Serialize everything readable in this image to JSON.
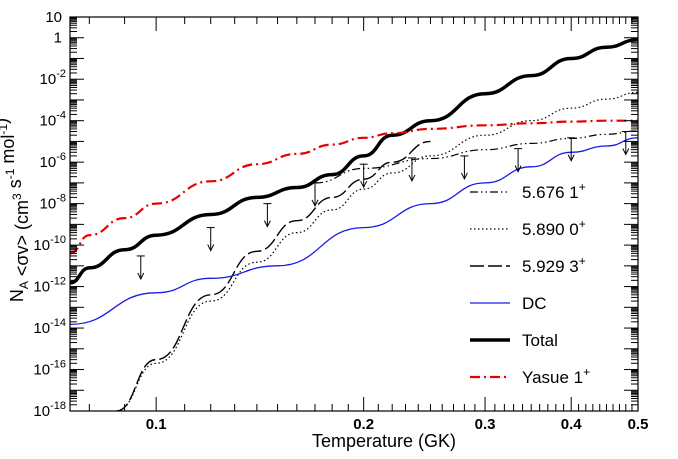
{
  "chart_data": {
    "type": "line",
    "xlabel": "Temperature (GK)",
    "ylabel": "N_A <σv> (cm^3 s^-1 mol^-1)",
    "xlim": [
      0.075,
      0.5
    ],
    "ylim": [
      1e-18,
      10
    ],
    "xscale": "log",
    "yscale": "log",
    "grid": false,
    "legend_position": "bottom-right",
    "x_ticks": [
      "0.1",
      "0.2",
      "0.3",
      "0.4",
      "0.5"
    ],
    "y_ticks": [
      {
        "base": "10",
        "exp": "-18"
      },
      {
        "base": "10",
        "exp": "-16"
      },
      {
        "base": "10",
        "exp": "-14"
      },
      {
        "base": "10",
        "exp": "-12"
      },
      {
        "base": "10",
        "exp": "-10"
      },
      {
        "base": "10",
        "exp": "-8"
      },
      {
        "base": "10",
        "exp": "-6"
      },
      {
        "base": "10",
        "exp": "-4"
      },
      {
        "base": "10",
        "exp": "-2"
      },
      {
        "base": "1",
        "exp": ""
      },
      {
        "base": "10",
        "exp": ""
      }
    ],
    "series": [
      {
        "name": "5.676 1+",
        "label_main": "5.676 1",
        "label_sup": "+",
        "style": "dashdotdot",
        "color": "#000000",
        "width": 1.2,
        "x": [
          0.085,
          0.095,
          0.11,
          0.13,
          0.15,
          0.17,
          0.2,
          0.25,
          0.3,
          0.35,
          0.4,
          0.45,
          0.5
        ],
        "y": [
          0.0,
          0.0,
          0.0,
          0.0,
          0.0,
          1e-07,
          5e-07,
          1.5e-06,
          4e-06,
          8e-06,
          1.4e-05,
          2.2e-05,
          3.2e-05
        ],
        "upper_limits": true
      },
      {
        "name": "5.890 0+",
        "label_main": "5.890 0",
        "label_sup": "+",
        "style": "dotted",
        "color": "#000000",
        "width": 1.2,
        "x": [
          0.0875,
          0.1,
          0.12,
          0.14,
          0.16,
          0.18,
          0.2,
          0.22,
          0.25,
          0.3,
          0.35,
          0.4,
          0.45,
          0.5
        ],
        "y": [
          1e-18,
          2e-16,
          2e-13,
          1.5e-11,
          4e-10,
          5e-09,
          5e-08,
          3e-07,
          2e-06,
          2e-05,
          0.0001,
          0.0004,
          0.0011,
          0.0023
        ]
      },
      {
        "name": "5.929 3+",
        "label_main": "5.929 3",
        "label_sup": "+",
        "style": "longdash",
        "color": "#000000",
        "width": 1.4,
        "x": [
          0.0875,
          0.1,
          0.12,
          0.14,
          0.16,
          0.18,
          0.2,
          0.22,
          0.25
        ],
        "y": [
          1e-18,
          3e-16,
          4e-13,
          5e-11,
          1.5e-09,
          2e-08,
          1.5e-07,
          1e-06,
          1e-05
        ]
      },
      {
        "name": "DC",
        "label_main": "DC",
        "label_sup": "",
        "style": "solid",
        "color": "#1a1ae6",
        "width": 1.3,
        "x": [
          0.075,
          0.1,
          0.12,
          0.15,
          0.2,
          0.25,
          0.3,
          0.35,
          0.4,
          0.45,
          0.5
        ],
        "y": [
          1.5e-14,
          5e-13,
          2.5e-12,
          1e-11,
          7e-10,
          1e-08,
          1e-07,
          6e-07,
          3e-06,
          6e-06,
          1.5e-05
        ]
      },
      {
        "name": "Total",
        "label_main": "Total",
        "label_sup": "",
        "style": "solid",
        "color": "#000000",
        "width": 3.5,
        "x": [
          0.075,
          0.08,
          0.09,
          0.1,
          0.12,
          0.14,
          0.16,
          0.18,
          0.2,
          0.22,
          0.25,
          0.3,
          0.35,
          0.4,
          0.45,
          0.5
        ],
        "y": [
          1.5e-12,
          8e-12,
          6e-11,
          3e-10,
          3e-09,
          2e-08,
          6e-08,
          2.5e-07,
          2e-06,
          2e-05,
          0.0001,
          0.002,
          0.015,
          0.1,
          0.35,
          0.8
        ]
      },
      {
        "name": "Yasue 1+",
        "label_main": "Yasue 1",
        "label_sup": "+",
        "style": "dashdot",
        "color": "#e60000",
        "width": 2.2,
        "x": [
          0.075,
          0.08,
          0.09,
          0.1,
          0.12,
          0.14,
          0.16,
          0.18,
          0.2,
          0.22,
          0.25,
          0.3,
          0.35,
          0.4,
          0.45,
          0.5
        ],
        "y": [
          4e-11,
          3e-10,
          2e-09,
          1e-08,
          1.2e-07,
          8e-07,
          2.5e-06,
          7e-06,
          1.5e-05,
          2.5e-05,
          4e-05,
          6e-05,
          7.5e-05,
          9e-05,
          0.0001,
          0.0001
        ]
      }
    ],
    "arrow_points": {
      "x": [
        0.095,
        0.12,
        0.145,
        0.17,
        0.2,
        0.235,
        0.28,
        0.335,
        0.4,
        0.48
      ],
      "y": [
        3e-11,
        7e-10,
        1e-08,
        1e-07,
        8e-07,
        1.6e-06,
        2e-06,
        4.5e-06,
        1.5e-05,
        3e-05
      ]
    }
  }
}
